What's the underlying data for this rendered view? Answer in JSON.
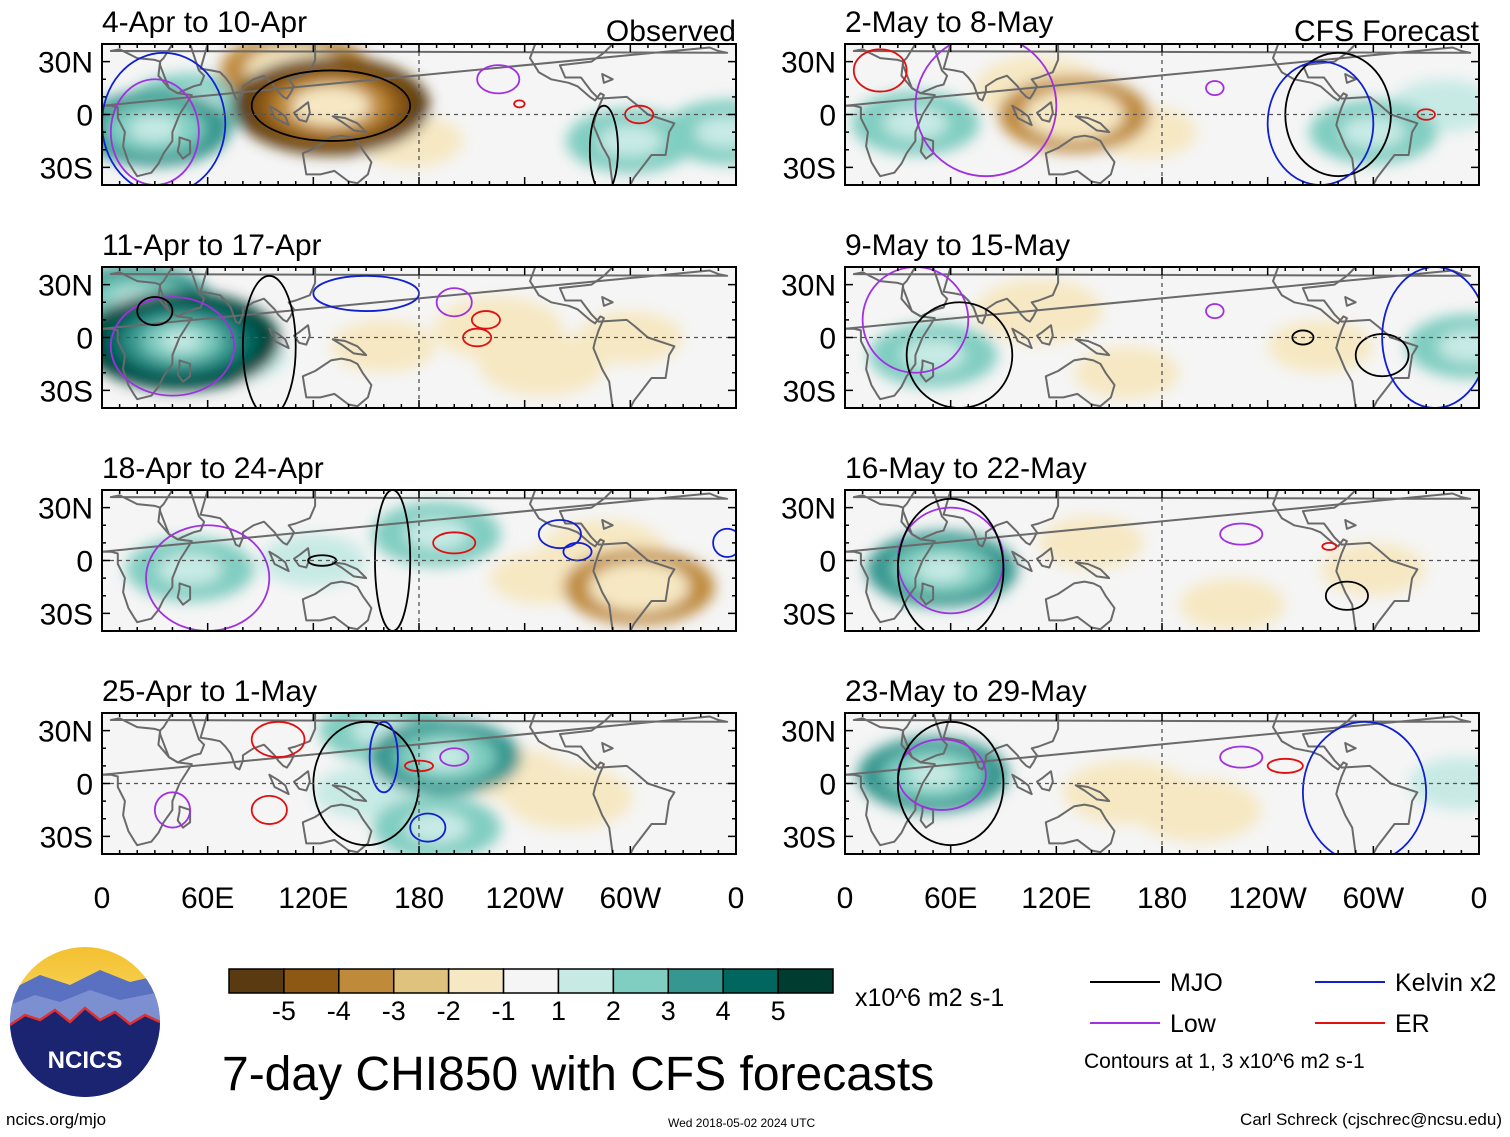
{
  "figure": {
    "title": "7-day CHI850 with CFS forecasts",
    "colorbar_units": "x10^6 m2 s-1",
    "contour_note": "Contours at 1, 3 x10^6 m2 s-1",
    "logo_text": "NCICS",
    "footer_left": "ncics.org/mjo",
    "footer_date": "Wed 2018-05-02 2024 UTC",
    "footer_right": "Carl Schreck (cjschrec@ncsu.edu)"
  },
  "columns": [
    {
      "label": "Observed"
    },
    {
      "label": "CFS Forecast"
    }
  ],
  "panels": [
    {
      "col": 0,
      "row": 0,
      "title": "4-Apr to 10-Apr"
    },
    {
      "col": 0,
      "row": 1,
      "title": "11-Apr to 17-Apr"
    },
    {
      "col": 0,
      "row": 2,
      "title": "18-Apr to 24-Apr"
    },
    {
      "col": 0,
      "row": 3,
      "title": "25-Apr to 1-May"
    },
    {
      "col": 1,
      "row": 0,
      "title": "2-May to 8-May"
    },
    {
      "col": 1,
      "row": 1,
      "title": "9-May to 15-May"
    },
    {
      "col": 1,
      "row": 2,
      "title": "16-May to 22-May"
    },
    {
      "col": 1,
      "row": 3,
      "title": "23-May to 29-May"
    }
  ],
  "axes": {
    "lat_ticks": [
      {
        "value": 30,
        "label": "30N"
      },
      {
        "value": 0,
        "label": "0"
      },
      {
        "value": -30,
        "label": "30S"
      }
    ],
    "lat_range": [
      -40,
      40
    ],
    "lon_range": [
      0,
      360
    ],
    "lon_ticks": [
      {
        "value": 0,
        "label": "0"
      },
      {
        "value": 60,
        "label": "60E"
      },
      {
        "value": 120,
        "label": "120E"
      },
      {
        "value": 180,
        "label": "180"
      },
      {
        "value": 240,
        "label": "120W"
      },
      {
        "value": 300,
        "label": "60W"
      },
      {
        "value": 360,
        "label": "0"
      }
    ]
  },
  "colorbar": {
    "colors": [
      "#5a3a10",
      "#8c5814",
      "#bf8a3a",
      "#dfc27d",
      "#f6e8c3",
      "#f5f5f5",
      "#c7eae5",
      "#80cdc1",
      "#35978f",
      "#01665e",
      "#003c30"
    ],
    "labels": [
      "-5",
      "-4",
      "-3",
      "-2",
      "-1",
      "1",
      "2",
      "3",
      "4",
      "5"
    ]
  },
  "legend": [
    {
      "label": "MJO",
      "color": "#000000"
    },
    {
      "label": "Kelvin x2",
      "color": "#1020d0"
    },
    {
      "label": "Low",
      "color": "#a030e0"
    },
    {
      "label": "ER",
      "color": "#e01010"
    }
  ],
  "chart_data": {
    "type": "heatmap",
    "field": "CHI850 anomaly (x10^6 m2 s-1)",
    "note": "Approximate anomaly centres read from each panel: [lon (deg E), lat (deg), value]",
    "panels": [
      {
        "title": "4-Apr to 10-Apr",
        "anomalies": [
          [
            30,
            -8,
            3
          ],
          [
            50,
            5,
            2
          ],
          [
            130,
            5,
            -5
          ],
          [
            110,
            25,
            -3
          ],
          [
            300,
            -15,
            2
          ],
          [
            355,
            -10,
            2
          ],
          [
            175,
            -15,
            -1
          ]
        ]
      },
      {
        "title": "11-Apr to 17-Apr",
        "anomalies": [
          [
            45,
            -2,
            5
          ],
          [
            20,
            20,
            3
          ],
          [
            75,
            -10,
            1
          ],
          [
            250,
            -15,
            -2
          ],
          [
            225,
            5,
            -2
          ],
          [
            300,
            0,
            -1
          ],
          [
            160,
            -5,
            -1
          ]
        ]
      },
      {
        "title": "18-Apr to 24-Apr",
        "anomalies": [
          [
            50,
            -5,
            2
          ],
          [
            305,
            -15,
            -3
          ],
          [
            285,
            5,
            -2
          ],
          [
            190,
            15,
            2
          ],
          [
            120,
            0,
            1
          ],
          [
            250,
            -10,
            -1
          ]
        ]
      },
      {
        "title": "25-Apr to 1-May",
        "anomalies": [
          [
            195,
            15,
            3
          ],
          [
            160,
            30,
            2
          ],
          [
            190,
            -25,
            2
          ],
          [
            150,
            -5,
            1
          ],
          [
            265,
            -8,
            -2
          ],
          [
            235,
            5,
            -1
          ]
        ]
      },
      {
        "title": "2-May to 8-May",
        "anomalies": [
          [
            130,
            0,
            -3
          ],
          [
            110,
            15,
            -2
          ],
          [
            170,
            -10,
            -1
          ],
          [
            300,
            -10,
            2
          ],
          [
            340,
            5,
            1
          ],
          [
            40,
            -5,
            2
          ]
        ]
      },
      {
        "title": "9-May to 15-May",
        "anomalies": [
          [
            110,
            15,
            -2
          ],
          [
            50,
            -10,
            2
          ],
          [
            160,
            -20,
            -1
          ],
          [
            355,
            -5,
            2
          ],
          [
            270,
            -5,
            -1
          ]
        ]
      },
      {
        "title": "16-May to 22-May",
        "anomalies": [
          [
            55,
            -5,
            3
          ],
          [
            140,
            10,
            -1
          ],
          [
            220,
            -25,
            -1
          ],
          [
            300,
            -5,
            -1
          ]
        ]
      },
      {
        "title": "23-May to 29-May",
        "anomalies": [
          [
            50,
            5,
            3
          ],
          [
            160,
            -5,
            -2
          ],
          [
            200,
            -15,
            -2
          ],
          [
            350,
            0,
            1
          ]
        ]
      }
    ]
  }
}
